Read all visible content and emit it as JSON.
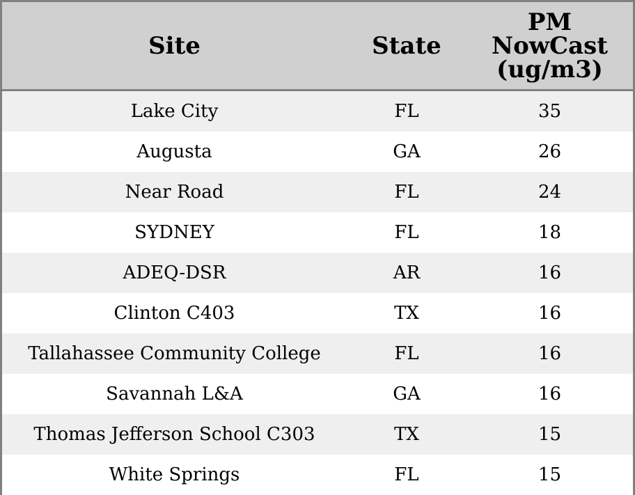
{
  "chart_data": {
    "type": "table",
    "columns": [
      "Site",
      "State",
      "PM NowCast (ug/m3)"
    ],
    "rows": [
      {
        "site": "Lake City",
        "state": "FL",
        "value": "35"
      },
      {
        "site": "Augusta",
        "state": "GA",
        "value": "26"
      },
      {
        "site": "Near Road",
        "state": "FL",
        "value": "24"
      },
      {
        "site": "SYDNEY",
        "state": "FL",
        "value": "18"
      },
      {
        "site": "ADEQ-DSR",
        "state": "AR",
        "value": "16"
      },
      {
        "site": "Clinton C403",
        "state": "TX",
        "value": "16"
      },
      {
        "site": "Tallahassee Community College",
        "state": "FL",
        "value": "16"
      },
      {
        "site": "Savannah L&A",
        "state": "GA",
        "value": "16"
      },
      {
        "site": "Thomas Jefferson School C303",
        "state": "TX",
        "value": "15"
      },
      {
        "site": "White Springs",
        "state": "FL",
        "value": "15"
      }
    ]
  },
  "colors": {
    "header_background": "#d0d0d0",
    "row_stripe": "#efefef",
    "row_plain": "#ffffff",
    "border": "#808080"
  }
}
